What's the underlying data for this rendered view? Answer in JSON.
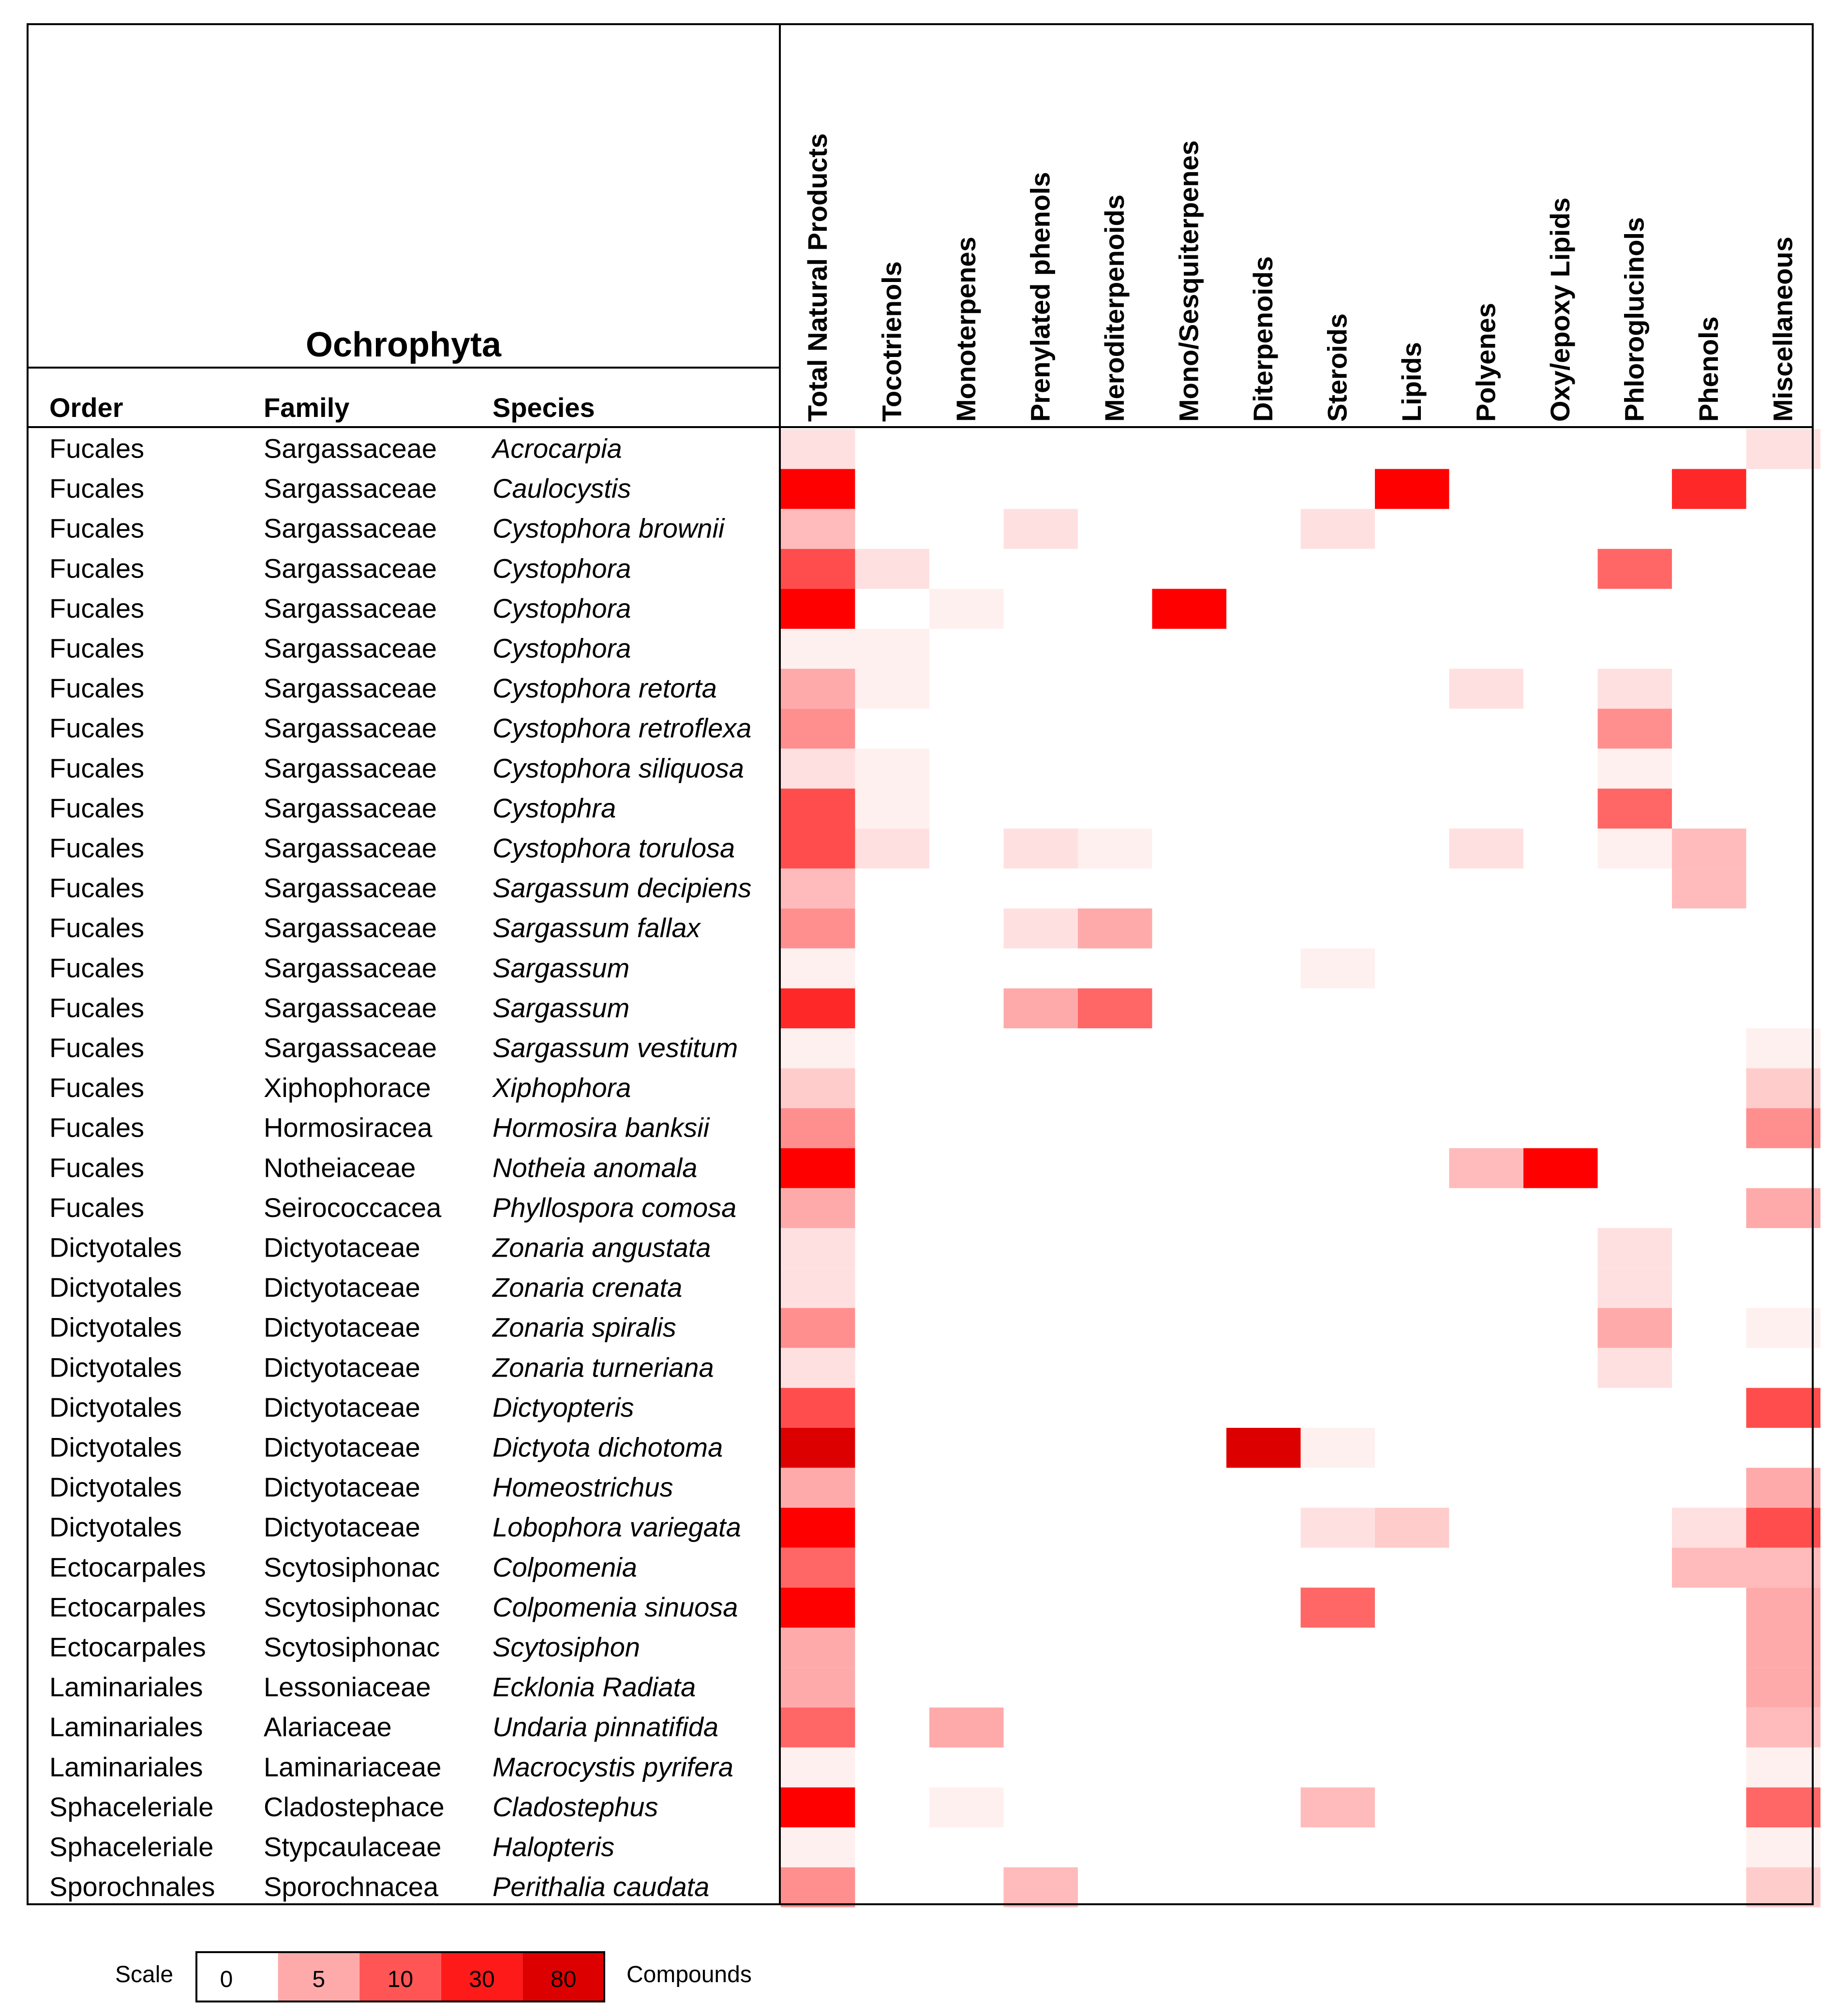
{
  "chart_data": {
    "type": "heatmap",
    "title": "Ochrophyta",
    "row_headers": [
      "Order",
      "Family",
      "Species"
    ],
    "columns": [
      "Total Natural Products",
      "Tocotrienols",
      "Monoterpenes",
      "Prenylated phenols",
      "Meroditerpenoids",
      "Mono/Sesquiterpenes",
      "Diterpenoids",
      "Steroids",
      "Lipids",
      "Polyenes",
      "Oxy/epoxy Lipids",
      "Phloroglucinols",
      "Phenols",
      "Miscellaneous"
    ],
    "rows": [
      {
        "order": "Fucales",
        "family": "Sargassaceae",
        "species": "Acrocarpia",
        "values": [
          2,
          0,
          0,
          0,
          0,
          0,
          0,
          0,
          0,
          0,
          0,
          0,
          0,
          2
        ]
      },
      {
        "order": "Fucales",
        "family": "Sargassaceae",
        "species": "Caulocystis",
        "values": [
          40,
          0,
          0,
          0,
          0,
          0,
          0,
          0,
          40,
          0,
          0,
          0,
          25,
          0
        ]
      },
      {
        "order": "Fucales",
        "family": "Sargassaceae",
        "species": "Cystophora brownii",
        "values": [
          4,
          0,
          0,
          2,
          0,
          0,
          0,
          2,
          0,
          0,
          0,
          0,
          0,
          0
        ]
      },
      {
        "order": "Fucales",
        "family": "Sargassaceae",
        "species": "Cystophora",
        "values": [
          20,
          2,
          0,
          0,
          0,
          0,
          0,
          0,
          0,
          0,
          0,
          12,
          0,
          0
        ]
      },
      {
        "order": "Fucales",
        "family": "Sargassaceae",
        "species": "Cystophora",
        "values": [
          40,
          0,
          1,
          0,
          0,
          40,
          0,
          0,
          0,
          0,
          0,
          0,
          0,
          0
        ]
      },
      {
        "order": "Fucales",
        "family": "Sargassaceae",
        "species": "Cystophora",
        "values": [
          1,
          1,
          0,
          0,
          0,
          0,
          0,
          0,
          0,
          0,
          0,
          0,
          0,
          0
        ]
      },
      {
        "order": "Fucales",
        "family": "Sargassaceae",
        "species": "Cystophora retorta",
        "values": [
          5,
          1,
          0,
          0,
          0,
          0,
          0,
          0,
          0,
          2,
          0,
          2,
          0,
          0
        ]
      },
      {
        "order": "Fucales",
        "family": "Sargassaceae",
        "species": "Cystophora retroflexa",
        "values": [
          8,
          0,
          0,
          0,
          0,
          0,
          0,
          0,
          0,
          0,
          0,
          7,
          0,
          0
        ]
      },
      {
        "order": "Fucales",
        "family": "Sargassaceae",
        "species": "Cystophora siliquosa",
        "values": [
          2,
          1,
          0,
          0,
          0,
          0,
          0,
          0,
          0,
          0,
          0,
          1,
          0,
          0
        ]
      },
      {
        "order": "Fucales",
        "family": "Sargassaceae",
        "species": "Cystophra",
        "values": [
          15,
          1,
          0,
          0,
          0,
          0,
          0,
          0,
          0,
          0,
          0,
          11,
          0,
          0
        ]
      },
      {
        "order": "Fucales",
        "family": "Sargassaceae",
        "species": "Cystophora torulosa",
        "values": [
          20,
          2,
          0,
          2,
          1,
          0,
          0,
          0,
          0,
          2,
          0,
          1,
          4,
          0
        ]
      },
      {
        "order": "Fucales",
        "family": "Sargassaceae",
        "species": "Sargassum decipiens",
        "values": [
          4,
          0,
          0,
          0,
          0,
          0,
          0,
          0,
          0,
          0,
          0,
          0,
          4,
          0
        ]
      },
      {
        "order": "Fucales",
        "family": "Sargassaceae",
        "species": "Sargassum fallax",
        "values": [
          8,
          0,
          0,
          2,
          5,
          0,
          0,
          0,
          0,
          0,
          0,
          0,
          0,
          0
        ]
      },
      {
        "order": "Fucales",
        "family": "Sargassaceae",
        "species": "Sargassum",
        "values": [
          1,
          0,
          0,
          0,
          0,
          0,
          0,
          1,
          0,
          0,
          0,
          0,
          0,
          0
        ]
      },
      {
        "order": "Fucales",
        "family": "Sargassaceae",
        "species": "Sargassum",
        "values": [
          25,
          0,
          0,
          5,
          9,
          0,
          0,
          0,
          0,
          0,
          0,
          0,
          0,
          0
        ]
      },
      {
        "order": "Fucales",
        "family": "Sargassaceae",
        "species": "Sargassum vestitum",
        "values": [
          1,
          0,
          0,
          0,
          0,
          0,
          0,
          0,
          0,
          0,
          0,
          0,
          0,
          1
        ]
      },
      {
        "order": "Fucales",
        "family": "Xiphophorace",
        "species": "Xiphophora",
        "values": [
          3,
          0,
          0,
          0,
          0,
          0,
          0,
          0,
          0,
          0,
          0,
          0,
          0,
          3
        ]
      },
      {
        "order": "Fucales",
        "family": "Hormosiracea",
        "species": "Hormosira banksii",
        "values": [
          7,
          0,
          0,
          0,
          0,
          0,
          0,
          0,
          0,
          0,
          0,
          0,
          0,
          7
        ]
      },
      {
        "order": "Fucales",
        "family": "Notheiaceae",
        "species": "Notheia anomala",
        "values": [
          40,
          0,
          0,
          0,
          0,
          0,
          0,
          0,
          0,
          4,
          40,
          0,
          0,
          0
        ]
      },
      {
        "order": "Fucales",
        "family": "Seirococcacea",
        "species": "Phyllospora comosa",
        "values": [
          5,
          0,
          0,
          0,
          0,
          0,
          0,
          0,
          0,
          0,
          0,
          0,
          0,
          5
        ]
      },
      {
        "order": "Dictyotales",
        "family": "Dictyotaceae",
        "species": "Zonaria angustata",
        "values": [
          2,
          0,
          0,
          0,
          0,
          0,
          0,
          0,
          0,
          0,
          0,
          2,
          0,
          0
        ]
      },
      {
        "order": "Dictyotales",
        "family": "Dictyotaceae",
        "species": "Zonaria crenata",
        "values": [
          2,
          0,
          0,
          0,
          0,
          0,
          0,
          0,
          0,
          0,
          0,
          2,
          0,
          0
        ]
      },
      {
        "order": "Dictyotales",
        "family": "Dictyotaceae",
        "species": "Zonaria spiralis",
        "values": [
          8,
          0,
          0,
          0,
          0,
          0,
          0,
          0,
          0,
          0,
          0,
          6,
          0,
          1
        ]
      },
      {
        "order": "Dictyotales",
        "family": "Dictyotaceae",
        "species": "Zonaria turneriana",
        "values": [
          2,
          0,
          0,
          0,
          0,
          0,
          0,
          0,
          0,
          0,
          0,
          2,
          0,
          0
        ]
      },
      {
        "order": "Dictyotales",
        "family": "Dictyotaceae",
        "species": "Dictyopteris",
        "values": [
          20,
          0,
          0,
          0,
          0,
          0,
          0,
          0,
          0,
          0,
          0,
          0,
          0,
          20
        ]
      },
      {
        "order": "Dictyotales",
        "family": "Dictyotaceae",
        "species": "Dictyota dichotoma",
        "values": [
          80,
          0,
          0,
          0,
          0,
          0,
          80,
          1,
          0,
          0,
          0,
          0,
          0,
          0
        ]
      },
      {
        "order": "Dictyotales",
        "family": "Dictyotaceae",
        "species": "Homeostrichus",
        "values": [
          5,
          0,
          0,
          0,
          0,
          0,
          0,
          0,
          0,
          0,
          0,
          0,
          0,
          5
        ]
      },
      {
        "order": "Dictyotales",
        "family": "Dictyotaceae",
        "species": "Lobophora variegata",
        "values": [
          40,
          0,
          0,
          0,
          0,
          0,
          0,
          2,
          3,
          0,
          0,
          0,
          2,
          20
        ]
      },
      {
        "order": "Ectocarpales",
        "family": "Scytosiphonac",
        "species": "Colpomenia",
        "values": [
          12,
          0,
          0,
          0,
          0,
          0,
          0,
          0,
          0,
          0,
          0,
          0,
          4,
          4
        ]
      },
      {
        "order": "Ectocarpales",
        "family": "Scytosiphonac",
        "species": "Colpomenia sinuosa",
        "values": [
          40,
          0,
          0,
          0,
          0,
          0,
          0,
          12,
          0,
          0,
          0,
          0,
          0,
          6
        ]
      },
      {
        "order": "Ectocarpales",
        "family": "Scytosiphonac",
        "species": "Scytosiphon",
        "values": [
          6,
          0,
          0,
          0,
          0,
          0,
          0,
          0,
          0,
          0,
          0,
          0,
          0,
          6
        ]
      },
      {
        "order": "Laminariales",
        "family": "Lessoniaceae",
        "species": "Ecklonia Radiata",
        "values": [
          5,
          0,
          0,
          0,
          0,
          0,
          0,
          0,
          0,
          0,
          0,
          0,
          0,
          5
        ]
      },
      {
        "order": "Laminariales",
        "family": "Alariaceae",
        "species": "Undaria pinnatifida",
        "values": [
          12,
          0,
          5,
          0,
          0,
          0,
          0,
          0,
          0,
          0,
          0,
          0,
          0,
          4
        ]
      },
      {
        "order": "Laminariales",
        "family": "Laminariaceae",
        "species": "Macrocystis pyrifera",
        "values": [
          1,
          0,
          0,
          0,
          0,
          0,
          0,
          0,
          0,
          0,
          0,
          0,
          0,
          1
        ]
      },
      {
        "order": "Sphaceleriale",
        "family": "Cladostephace",
        "species": "Cladostephus",
        "values": [
          40,
          0,
          1,
          0,
          0,
          0,
          0,
          4,
          0,
          0,
          0,
          0,
          0,
          12
        ]
      },
      {
        "order": "Sphaceleriale",
        "family": "Stypcaulaceae",
        "species": "Halopteris",
        "values": [
          1,
          0,
          0,
          0,
          0,
          0,
          0,
          0,
          0,
          0,
          0,
          0,
          0,
          1
        ]
      },
      {
        "order": "Sporochnales",
        "family": "Sporochnacea",
        "species": "Perithalia caudata",
        "values": [
          7,
          0,
          0,
          4,
          0,
          0,
          0,
          0,
          0,
          0,
          0,
          0,
          0,
          3
        ]
      }
    ],
    "legend": {
      "label": "Scale",
      "unit_label": "Compounds",
      "stops": [
        0,
        5,
        10,
        30,
        80
      ],
      "stop_labels": [
        "0",
        "5",
        "10",
        "30",
        "80"
      ]
    }
  },
  "colors": {
    "zero": "#ffffff",
    "low": "#fff0f0",
    "mid1": "#ff9999",
    "mid2": "#ff4d4d",
    "high": "#ff0000",
    "max": "#dd0000",
    "grid": "#000000"
  }
}
